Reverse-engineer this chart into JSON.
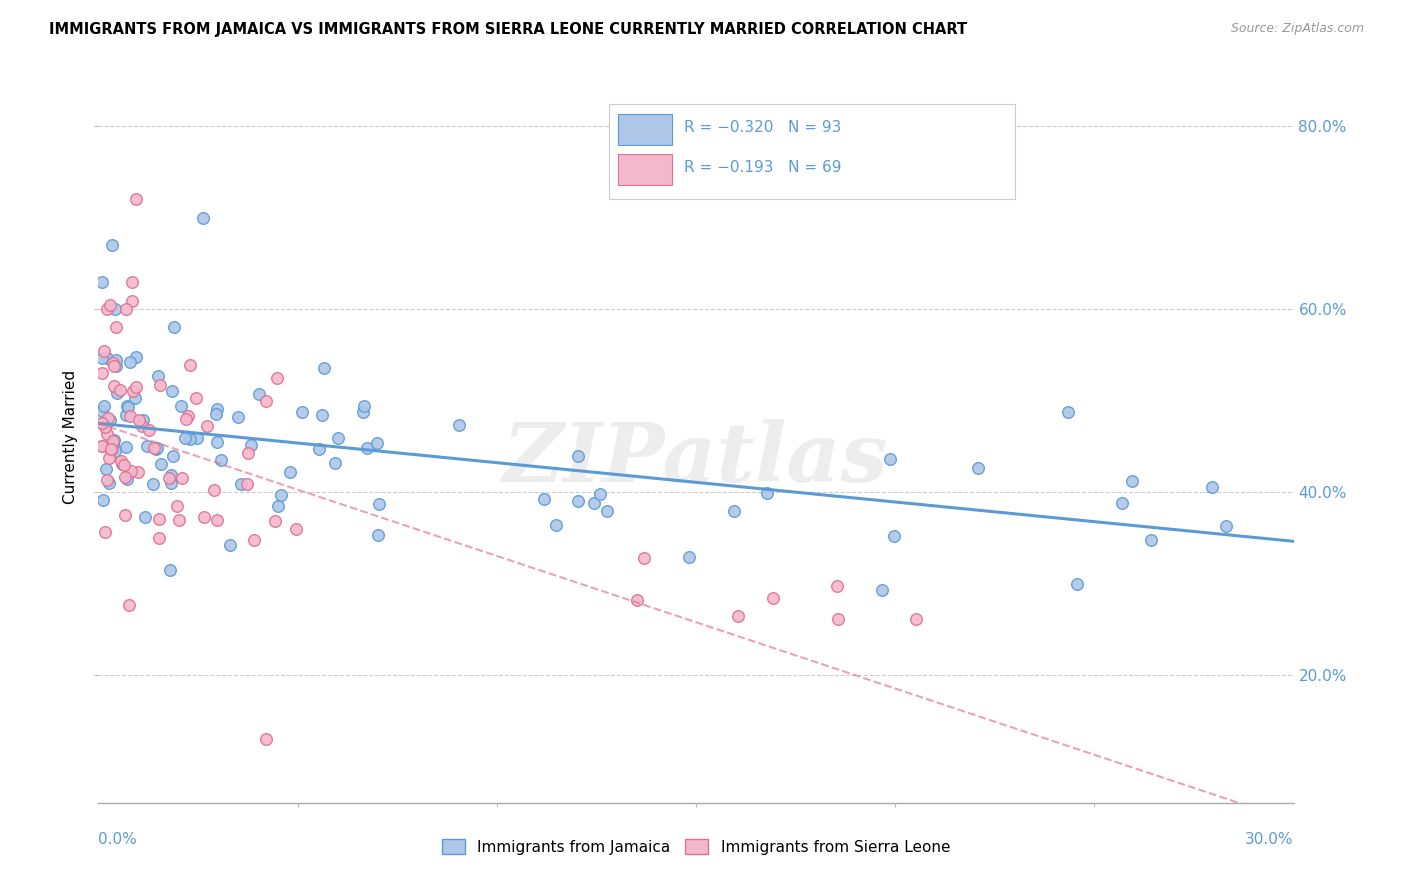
{
  "title": "IMMIGRANTS FROM JAMAICA VS IMMIGRANTS FROM SIERRA LEONE CURRENTLY MARRIED CORRELATION CHART",
  "source": "Source: ZipAtlas.com",
  "ylabel": "Currently Married",
  "xlim": [
    0.0,
    0.3
  ],
  "ylim": [
    0.06,
    0.86
  ],
  "jamaica_color": "#aec6e8",
  "jamaica_edge_color": "#5b9bd5",
  "sierra_color": "#f4b8cc",
  "sierra_edge_color": "#e07090",
  "jamaica_line_color": "#5b9bd5",
  "sierra_line_color": "#e07090",
  "legend_bottom_jamaica": "Immigrants from Jamaica",
  "legend_bottom_sierra": "Immigrants from Sierra Leone",
  "watermark": "ZIPatlas",
  "ytick_vals": [
    0.2,
    0.4,
    0.6,
    0.8
  ],
  "ytick_labels": [
    "20.0%",
    "40.0%",
    "60.0%",
    "80.0%"
  ]
}
